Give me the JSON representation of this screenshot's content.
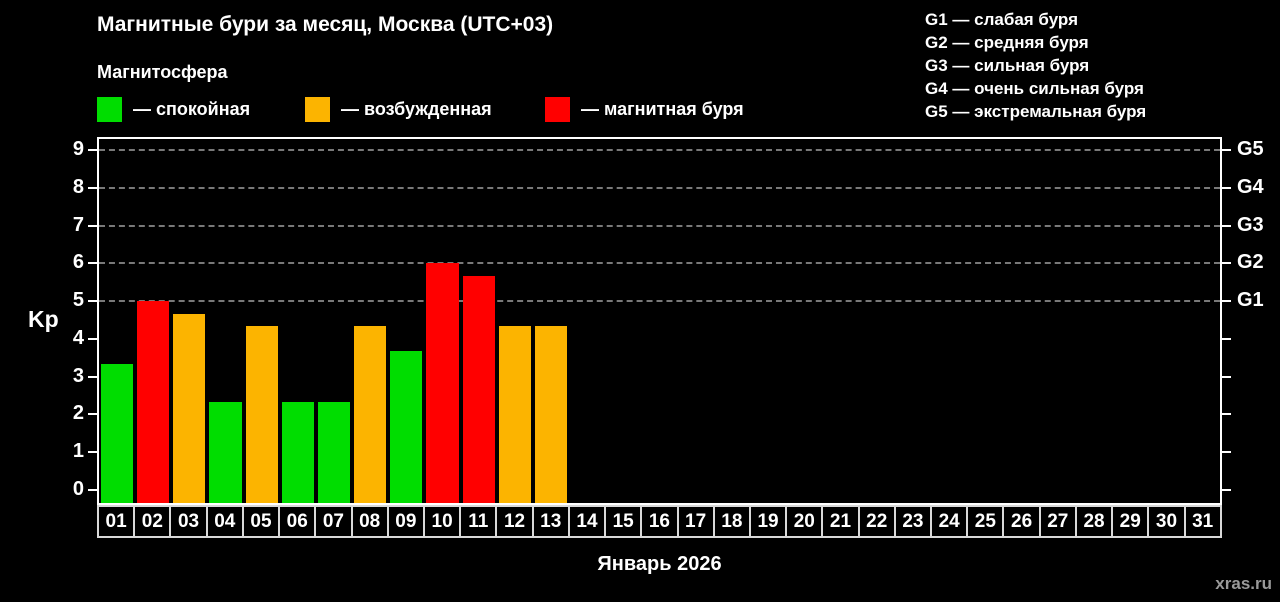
{
  "header": {
    "title": "Магнитные бури за месяц, Москва (UTC+03)",
    "subtitle": "Магнитосфера",
    "legend": [
      {
        "key": "quiet",
        "label": "— спокойная",
        "color": "#00dd00"
      },
      {
        "key": "excited",
        "label": "— возбужденная",
        "color": "#fcb400"
      },
      {
        "key": "storm",
        "label": "— магнитная буря",
        "color": "#ff0000"
      }
    ],
    "g_legend": [
      "G1 — слабая буря",
      "G2 — средняя буря",
      "G3 — сильная буря",
      "G4 — очень сильная буря",
      "G5 — экстремальная буря"
    ]
  },
  "chart_data": {
    "type": "bar",
    "title": "Магнитные бури за месяц, Москва (UTC+03)",
    "ylabel": "Kp",
    "xlabel": "Январь 2026",
    "ylim": [
      0,
      9
    ],
    "y_ticks": [
      0,
      1,
      2,
      3,
      4,
      5,
      6,
      7,
      8,
      9
    ],
    "gridlines_at": [
      5,
      6,
      7,
      8,
      9
    ],
    "grid": true,
    "legend_position": "top-left",
    "right_axis_labels": [
      {
        "value": 5,
        "label": "G1"
      },
      {
        "value": 6,
        "label": "G2"
      },
      {
        "value": 7,
        "label": "G3"
      },
      {
        "value": 8,
        "label": "G4"
      },
      {
        "value": 9,
        "label": "G5"
      }
    ],
    "categories": [
      "01",
      "02",
      "03",
      "04",
      "05",
      "06",
      "07",
      "08",
      "09",
      "10",
      "11",
      "12",
      "13",
      "14",
      "15",
      "16",
      "17",
      "18",
      "19",
      "20",
      "21",
      "22",
      "23",
      "24",
      "25",
      "26",
      "27",
      "28",
      "29",
      "30",
      "31"
    ],
    "series": [
      {
        "name": "Kp",
        "values": [
          3.33,
          5,
          4.67,
          2.33,
          4.33,
          2.33,
          2.33,
          4.33,
          3.67,
          6,
          5.67,
          4.33,
          4.33,
          null,
          null,
          null,
          null,
          null,
          null,
          null,
          null,
          null,
          null,
          null,
          null,
          null,
          null,
          null,
          null,
          null,
          null
        ],
        "statuses": [
          "quiet",
          "storm",
          "excited",
          "quiet",
          "excited",
          "quiet",
          "quiet",
          "excited",
          "quiet",
          "storm",
          "storm",
          "excited",
          "excited",
          null,
          null,
          null,
          null,
          null,
          null,
          null,
          null,
          null,
          null,
          null,
          null,
          null,
          null,
          null,
          null,
          null,
          null
        ]
      }
    ],
    "status_colors": {
      "quiet": "#00dd00",
      "excited": "#fcb400",
      "storm": "#ff0000"
    }
  },
  "footer": {
    "month_label": "Январь 2026",
    "watermark": "xras.ru"
  }
}
